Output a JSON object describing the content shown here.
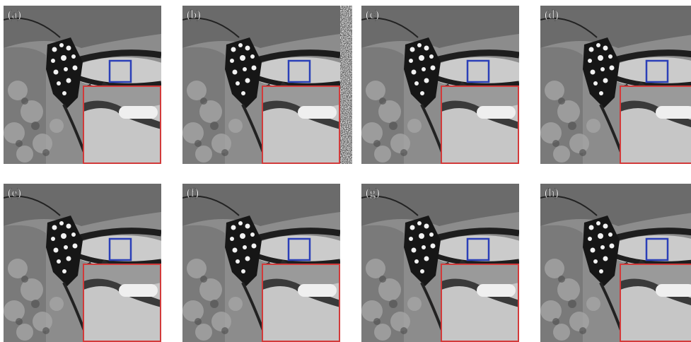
{
  "panels": [
    {
      "label": "(a)"
    },
    {
      "label": "(b)",
      "noisy": true
    },
    {
      "label": "(c)"
    },
    {
      "label": "(d)"
    },
    {
      "label": "(e)"
    },
    {
      "label": "(f)"
    },
    {
      "label": "(g)"
    },
    {
      "label": "(h)"
    }
  ]
}
